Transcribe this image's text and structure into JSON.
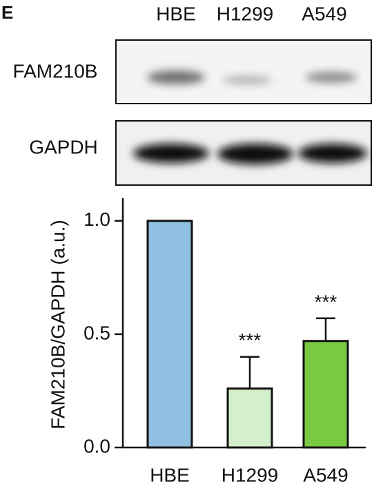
{
  "panel_label": "E",
  "blot": {
    "lanes": [
      "HBE",
      "H1299",
      "A549"
    ],
    "rows": [
      "FAM210B",
      "GAPDH"
    ]
  },
  "chart_data": {
    "type": "bar",
    "y_label": "FAM210B/GAPDH (a.u.)",
    "categories": [
      "HBE",
      "H1299",
      "A549"
    ],
    "values": [
      1.0,
      0.26,
      0.47
    ],
    "errors": [
      null,
      0.14,
      0.1
    ],
    "significance": [
      null,
      "***",
      "***"
    ],
    "colors": [
      "#8fbfe0",
      "#d4efcc",
      "#7bc843"
    ],
    "ylim": [
      0,
      1.1
    ],
    "yticks": [
      {
        "value": 0,
        "label": "0.0"
      },
      {
        "value": 0.5,
        "label": "0.5"
      },
      {
        "value": 1,
        "label": "1.0"
      }
    ]
  }
}
